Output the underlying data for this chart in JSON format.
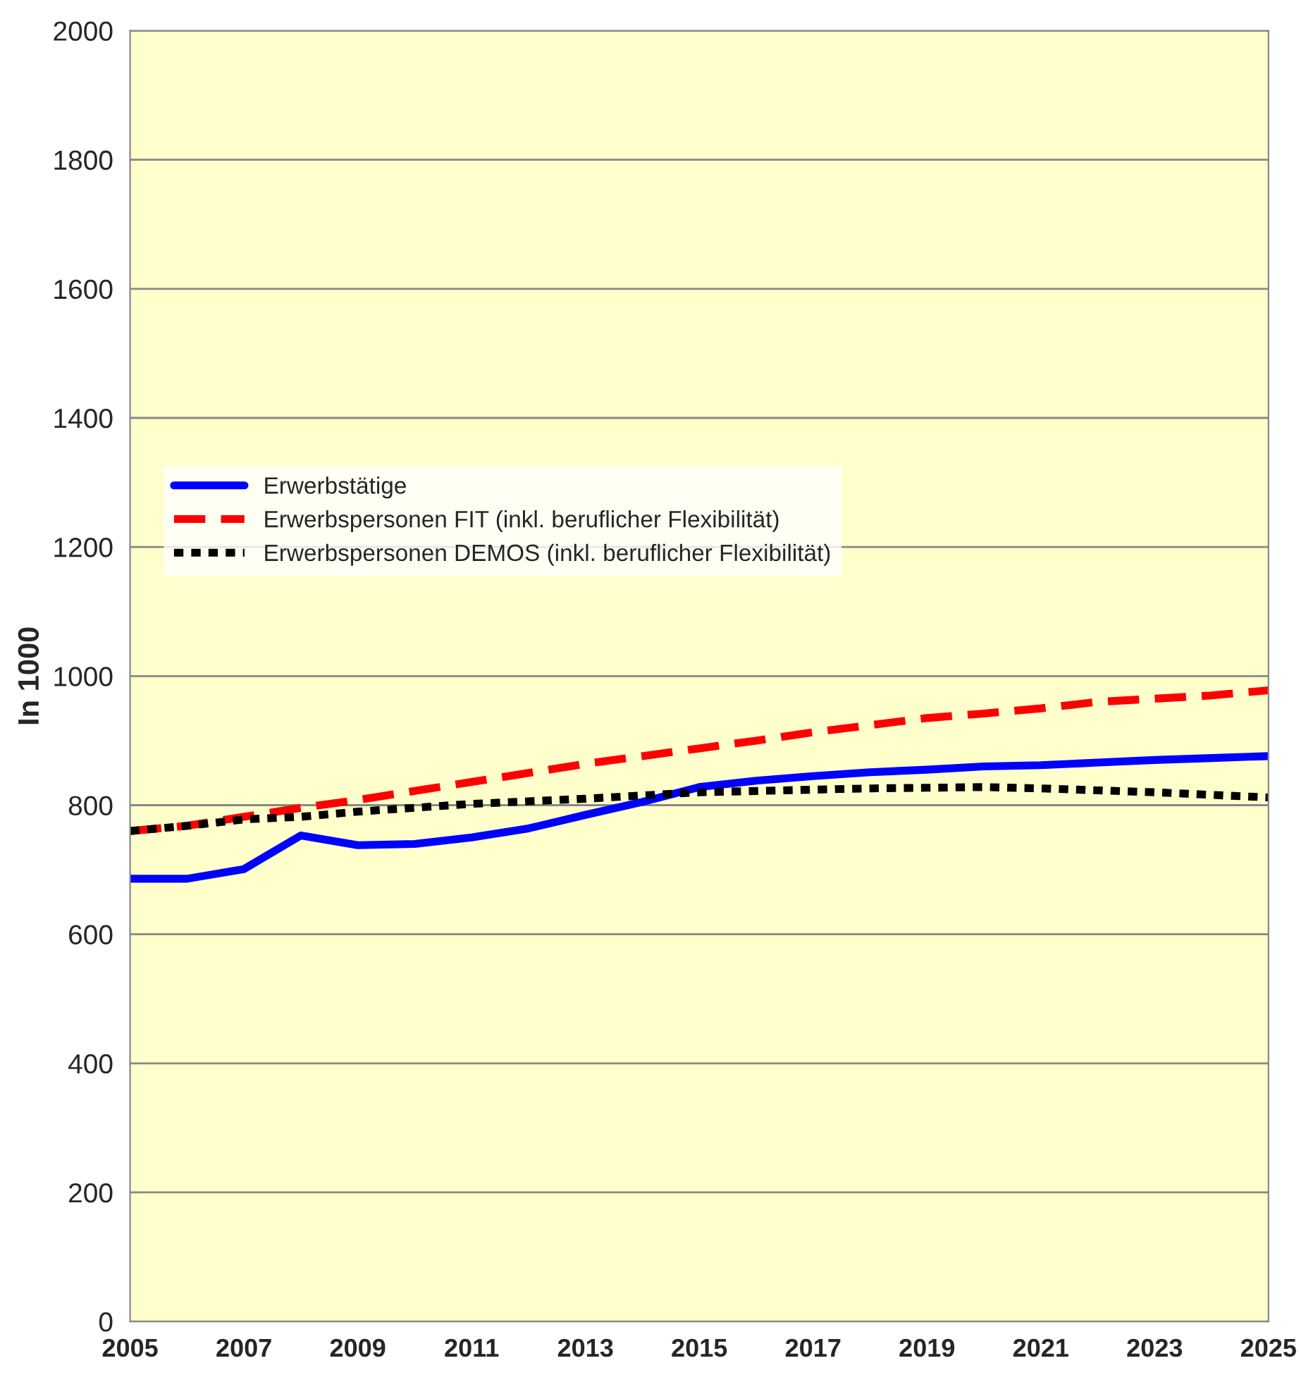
{
  "chart_data": {
    "type": "line",
    "ylabel": "In 1000",
    "x": [
      2005,
      2006,
      2007,
      2008,
      2009,
      2010,
      2011,
      2012,
      2013,
      2014,
      2015,
      2016,
      2017,
      2018,
      2019,
      2020,
      2021,
      2022,
      2023,
      2024,
      2025
    ],
    "series": [
      {
        "name": "Erwerbstätige",
        "color": "#0000ff",
        "line_style": "solid",
        "values": [
          686,
          686,
          701,
          753,
          738,
          740,
          750,
          764,
          785,
          805,
          828,
          838,
          845,
          851,
          855,
          860,
          862,
          866,
          870,
          873,
          876
        ]
      },
      {
        "name": "Erwerbspersonen FIT (inkl. beruflicher Flexibilität)",
        "color": "#ff0000",
        "line_style": "dashed",
        "values": [
          760,
          768,
          782,
          796,
          808,
          822,
          836,
          850,
          864,
          876,
          888,
          900,
          913,
          924,
          935,
          942,
          950,
          960,
          965,
          970,
          978
        ]
      },
      {
        "name": "Erwerbspersonen DEMOS (inkl. beruflicher Flexibilität)",
        "color": "#000000",
        "line_style": "dotted",
        "values": [
          760,
          768,
          778,
          782,
          790,
          796,
          802,
          806,
          810,
          815,
          820,
          822,
          824,
          826,
          827,
          828,
          826,
          823,
          820,
          816,
          812
        ]
      }
    ],
    "xlim": [
      2005,
      2025
    ],
    "xticks": [
      2005,
      2007,
      2009,
      2011,
      2013,
      2015,
      2017,
      2019,
      2021,
      2023,
      2025
    ],
    "ylim": [
      0,
      2000
    ],
    "yticks": [
      0,
      200,
      400,
      600,
      800,
      1000,
      1200,
      1400,
      1600,
      1800,
      2000
    ],
    "grid": "y",
    "legend": "center left",
    "marker": "none"
  }
}
